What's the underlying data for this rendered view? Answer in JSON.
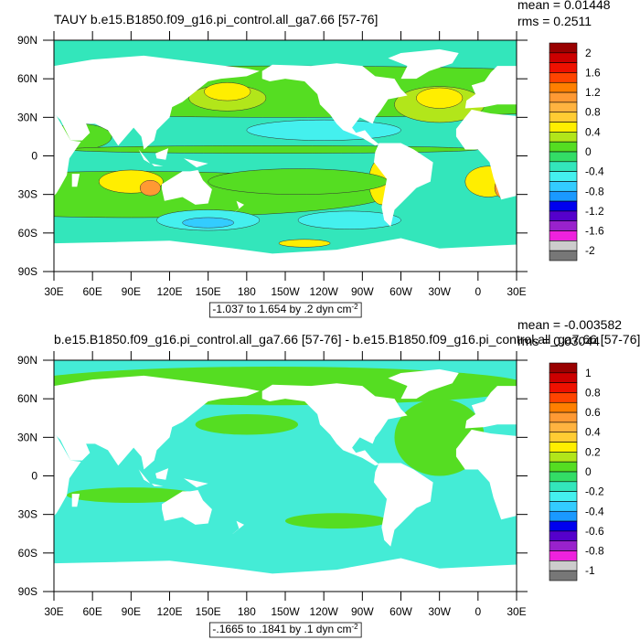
{
  "panels": [
    {
      "title": "TAUY b.e15.B1850.f09_g16.pi_control.all_ga7.66 [57-76]",
      "mean": "mean = 0.01448",
      "rms": "rms = 0.2511",
      "lat_ticks": [
        "90N",
        "60N",
        "30N",
        "0",
        "30S",
        "60S",
        "90S"
      ],
      "lon_ticks": [
        "30E",
        "60E",
        "90E",
        "120E",
        "150E",
        "180",
        "150W",
        "120W",
        "90W",
        "60W",
        "30W",
        "0",
        "30E"
      ],
      "colorbar": {
        "labels": [
          2,
          1.6,
          1.2,
          0.8,
          0.4,
          0,
          -0.4,
          -0.8,
          -1.2,
          -1.6,
          -2
        ]
      },
      "contour_info": {
        "text": "-1.037 to 1.654 by .2 dyn cm",
        "sup": "-2"
      }
    },
    {
      "title": "b.e15.B1850.f09_g16.pi_control.all_ga7.66 [57-76] - b.e15.B1850.f09_g16.pi_control.all_ga7.66 [57-76]",
      "mean": "mean = -0.003582",
      "rms": "rms = 0.03044",
      "lat_ticks": [
        "90N",
        "60N",
        "30N",
        "0",
        "30S",
        "60S",
        "90S"
      ],
      "lon_ticks": [
        "30E",
        "60E",
        "90E",
        "120E",
        "150E",
        "180",
        "150W",
        "120W",
        "90W",
        "60W",
        "30W",
        "0",
        "30E"
      ],
      "colorbar": {
        "labels": [
          1,
          0.8,
          0.6,
          0.4,
          0.2,
          0,
          -0.2,
          -0.4,
          -0.6,
          -0.8,
          -1
        ]
      },
      "contour_info": {
        "text": "-.1665 to .1841 by .1 dyn cm",
        "sup": "-2"
      }
    }
  ],
  "colorbar_colors": [
    "#990000",
    "#cc0000",
    "#ee1100",
    "#ff4400",
    "#ff7f00",
    "#ff9933",
    "#ffb340",
    "#ffcc33",
    "#ffee00",
    "#b2e61a",
    "#55dd22",
    "#33dd66",
    "#33e6bb",
    "#44f0ee",
    "#33ccff",
    "#1a99ff",
    "#0000ee",
    "#5500cc",
    "#9922cc",
    "#ee22dd",
    "#cccccc",
    "#777777"
  ]
}
